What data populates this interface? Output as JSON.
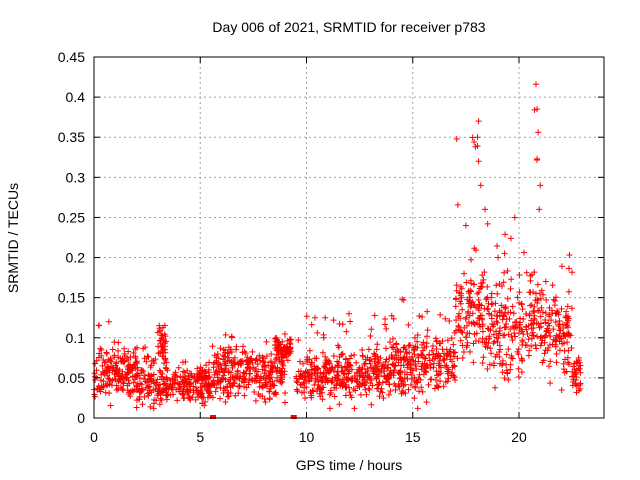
{
  "chart_data": {
    "type": "scatter",
    "title": "Day 006 of 2021, SRMTID for receiver p783",
    "xlabel": "GPS time / hours",
    "ylabel": "SRMTID / TECUs",
    "xlim": [
      0,
      24
    ],
    "ylim": [
      0,
      0.45
    ],
    "x_ticks": [
      0,
      5,
      10,
      15,
      20
    ],
    "x_tick_labels": [
      "0",
      "5",
      "10",
      "15",
      "20"
    ],
    "y_ticks": [
      0,
      0.05,
      0.1,
      0.15,
      0.2,
      0.25,
      0.3,
      0.35,
      0.4,
      0.45
    ],
    "y_tick_labels": [
      "0",
      "0.05",
      "0.1",
      "0.15",
      "0.2",
      "0.25",
      "0.3",
      "0.35",
      "0.4",
      "0.45"
    ],
    "grid": true,
    "marker": "plus",
    "color": "#ff0000",
    "series": [
      {
        "name": "SRMTID",
        "profile": [
          {
            "x_range": [
              0.0,
              2.0
            ],
            "center": 0.055,
            "spread": 0.025,
            "max": 0.12
          },
          {
            "x_range": [
              2.0,
              3.5
            ],
            "center": 0.045,
            "spread": 0.025,
            "max": 0.09
          },
          {
            "x_range": [
              3.0,
              3.4
            ],
            "center": 0.095,
            "spread": 0.02,
            "max": 0.118
          },
          {
            "x_range": [
              3.5,
              5.5
            ],
            "center": 0.04,
            "spread": 0.02,
            "max": 0.07
          },
          {
            "x_range": [
              5.5,
              9.0
            ],
            "center": 0.055,
            "spread": 0.025,
            "max": 0.105
          },
          {
            "x_range": [
              8.5,
              9.3
            ],
            "center": 0.085,
            "spread": 0.015,
            "max": 0.105
          },
          {
            "x_range": [
              9.5,
              14.0
            ],
            "center": 0.055,
            "spread": 0.025,
            "max": 0.13
          },
          {
            "x_range": [
              14.0,
              17.0
            ],
            "center": 0.065,
            "spread": 0.03,
            "max": 0.148
          },
          {
            "x_range": [
              17.0,
              18.5
            ],
            "center": 0.13,
            "spread": 0.05,
            "max": 0.37
          },
          {
            "x_range": [
              18.5,
              20.5
            ],
            "center": 0.11,
            "spread": 0.045,
            "max": 0.25
          },
          {
            "x_range": [
              20.5,
              21.0
            ],
            "center": 0.13,
            "spread": 0.05,
            "max": 0.416
          },
          {
            "x_range": [
              21.0,
              22.5
            ],
            "center": 0.11,
            "spread": 0.045,
            "max": 0.22
          },
          {
            "x_range": [
              22.5,
              22.9
            ],
            "center": 0.055,
            "spread": 0.02,
            "max": 0.075
          }
        ],
        "peaks": [
          {
            "x": 18.1,
            "y": 0.37
          },
          {
            "x": 18.05,
            "y": 0.35
          },
          {
            "x": 18.1,
            "y": 0.32
          },
          {
            "x": 18.2,
            "y": 0.29
          },
          {
            "x": 17.5,
            "y": 0.24
          },
          {
            "x": 18.4,
            "y": 0.26
          },
          {
            "x": 19.8,
            "y": 0.25
          },
          {
            "x": 20.8,
            "y": 0.416
          },
          {
            "x": 20.85,
            "y": 0.385
          },
          {
            "x": 20.9,
            "y": 0.356
          },
          {
            "x": 20.85,
            "y": 0.323
          },
          {
            "x": 21.0,
            "y": 0.29
          },
          {
            "x": 20.95,
            "y": 0.26
          },
          {
            "x": 14.5,
            "y": 0.148
          },
          {
            "x": 12.0,
            "y": 0.13
          },
          {
            "x": 0.7,
            "y": 0.12
          }
        ],
        "zero_points": [
          {
            "x": 5.6,
            "y": 0.0
          },
          {
            "x": 9.4,
            "y": 0.0
          }
        ]
      }
    ]
  }
}
